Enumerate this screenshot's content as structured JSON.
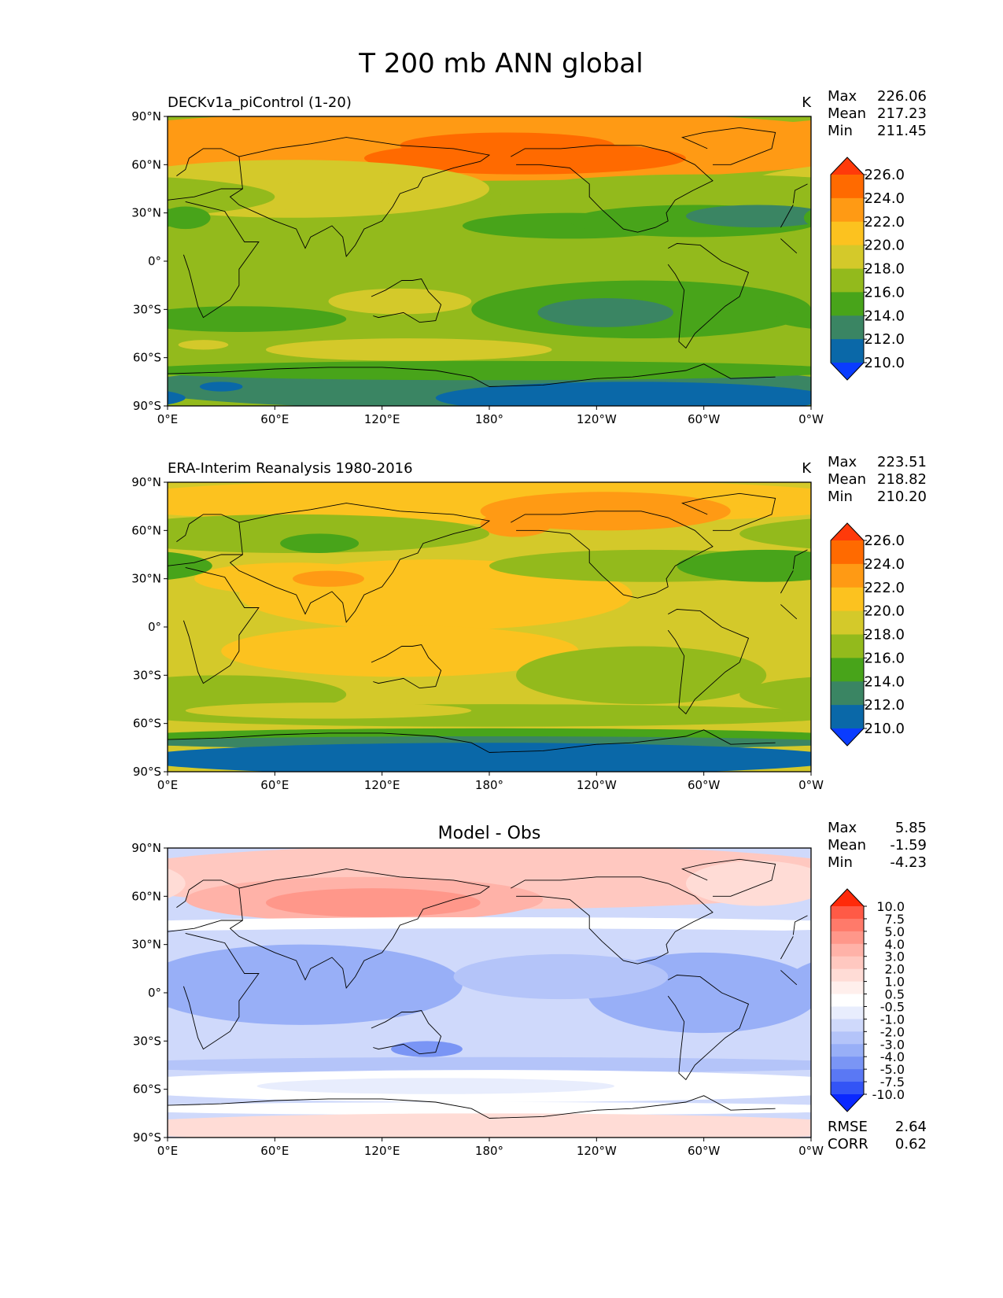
{
  "figure": {
    "title": "T 200 mb ANN global"
  },
  "axes": {
    "xticks": [
      "0°E",
      "60°E",
      "120°E",
      "180°",
      "120°W",
      "60°W",
      "0°W"
    ],
    "yticks": [
      "90°N",
      "60°N",
      "30°N",
      "0°",
      "30°S",
      "60°S",
      "90°S"
    ]
  },
  "chart_data": [
    {
      "type": "heatmap",
      "title": "DECKv1a_piControl (1-20)",
      "units": "K",
      "stats": {
        "max_label": "Max",
        "max": "226.06",
        "mean_label": "Mean",
        "mean": "217.23",
        "min_label": "Min",
        "min": "211.45"
      },
      "xlim": [
        0,
        360
      ],
      "ylim": [
        -90,
        90
      ],
      "colorbar": {
        "levels": [
          "226.0",
          "224.0",
          "222.0",
          "220.0",
          "218.0",
          "216.0",
          "214.0",
          "212.0",
          "210.0"
        ],
        "colors": [
          "#ff3a0a",
          "#ff6a00",
          "#ff9a14",
          "#fcc21f",
          "#d4c92a",
          "#93ba1c",
          "#48a41a",
          "#3a8563",
          "#0a68a8",
          "#0a3cff"
        ]
      },
      "background_level": 216.0,
      "regions": [
        {
          "lon": 170,
          "lat": 72,
          "rx": 240,
          "ry": 22,
          "value": 223
        },
        {
          "lon": 200,
          "lat": 64,
          "rx": 90,
          "ry": 10,
          "value": 225
        },
        {
          "lon": 190,
          "lat": 72,
          "rx": 60,
          "ry": 8,
          "value": 225
        },
        {
          "lon": 70,
          "lat": 45,
          "rx": 110,
          "ry": 18,
          "value": 219
        },
        {
          "lon": 95,
          "lat": 40,
          "rx": 50,
          "ry": 10,
          "value": 219
        },
        {
          "lon": 300,
          "lat": 40,
          "rx": 120,
          "ry": 14,
          "value": 217
        },
        {
          "lon": 225,
          "lat": 22,
          "rx": 60,
          "ry": 8,
          "value": 215
        },
        {
          "lon": 295,
          "lat": 25,
          "rx": 70,
          "ry": 10,
          "value": 215
        },
        {
          "lon": 330,
          "lat": 28,
          "rx": 40,
          "ry": 7,
          "value": 213
        },
        {
          "lon": 10,
          "lat": 27,
          "rx": 14,
          "ry": 7,
          "value": 215
        },
        {
          "lon": 130,
          "lat": -25,
          "rx": 40,
          "ry": 8,
          "value": 219
        },
        {
          "lon": 265,
          "lat": -30,
          "rx": 95,
          "ry": 18,
          "value": 215
        },
        {
          "lon": 245,
          "lat": -32,
          "rx": 38,
          "ry": 9,
          "value": 213
        },
        {
          "lon": 40,
          "lat": -36,
          "rx": 60,
          "ry": 8,
          "value": 215
        },
        {
          "lon": 135,
          "lat": -55,
          "rx": 80,
          "ry": 7,
          "value": 219
        },
        {
          "lon": 20,
          "lat": -52,
          "rx": 14,
          "ry": 3,
          "value": 219
        },
        {
          "lon": 180,
          "lat": -78,
          "rx": 200,
          "ry": 14,
          "value": 213
        },
        {
          "lon": 180,
          "lat": -68,
          "rx": 200,
          "ry": 6,
          "value": 215
        },
        {
          "lon": 260,
          "lat": -85,
          "rx": 110,
          "ry": 10,
          "value": 211
        },
        {
          "lon": 30,
          "lat": -78,
          "rx": 12,
          "ry": 3,
          "value": 211
        }
      ]
    },
    {
      "type": "heatmap",
      "title": "ERA-Interim Reanalysis 1980-2016",
      "units": "K",
      "stats": {
        "max_label": "Max",
        "max": "223.51",
        "mean_label": "Mean",
        "mean": "218.82",
        "min_label": "Min",
        "min": "210.20"
      },
      "xlim": [
        0,
        360
      ],
      "ylim": [
        -90,
        90
      ],
      "colorbar": {
        "levels": [
          "226.0",
          "224.0",
          "222.0",
          "220.0",
          "218.0",
          "216.0",
          "214.0",
          "212.0",
          "210.0"
        ],
        "colors": [
          "#ff3a0a",
          "#ff6a00",
          "#ff9a14",
          "#fcc21f",
          "#d4c92a",
          "#93ba1c",
          "#48a41a",
          "#3a8563",
          "#0a68a8",
          "#0a3cff"
        ]
      },
      "background_level": 218.0,
      "regions": [
        {
          "lon": 180,
          "lat": 78,
          "rx": 220,
          "ry": 14,
          "value": 221
        },
        {
          "lon": 245,
          "lat": 72,
          "rx": 70,
          "ry": 12,
          "value": 223
        },
        {
          "lon": 195,
          "lat": 64,
          "rx": 20,
          "ry": 8,
          "value": 223
        },
        {
          "lon": 70,
          "lat": 58,
          "rx": 110,
          "ry": 12,
          "value": 217
        },
        {
          "lon": 85,
          "lat": 52,
          "rx": 22,
          "ry": 6,
          "value": 215
        },
        {
          "lon": 150,
          "lat": 20,
          "rx": 110,
          "ry": 22,
          "value": 221
        },
        {
          "lon": 70,
          "lat": 30,
          "rx": 55,
          "ry": 10,
          "value": 221
        },
        {
          "lon": 90,
          "lat": 30,
          "rx": 20,
          "ry": 5,
          "value": 223
        },
        {
          "lon": 270,
          "lat": 38,
          "rx": 90,
          "ry": 10,
          "value": 217
        },
        {
          "lon": 335,
          "lat": 38,
          "rx": 50,
          "ry": 10,
          "value": 215
        },
        {
          "lon": 130,
          "lat": -15,
          "rx": 100,
          "ry": 16,
          "value": 221
        },
        {
          "lon": 265,
          "lat": -30,
          "rx": 70,
          "ry": 18,
          "value": 217
        },
        {
          "lon": 30,
          "lat": -42,
          "rx": 70,
          "ry": 12,
          "value": 217
        },
        {
          "lon": 180,
          "lat": -55,
          "rx": 200,
          "ry": 7,
          "value": 217
        },
        {
          "lon": 90,
          "lat": -52,
          "rx": 80,
          "ry": 5,
          "value": 219
        },
        {
          "lon": 180,
          "lat": -68,
          "rx": 200,
          "ry": 5,
          "value": 215
        },
        {
          "lon": 180,
          "lat": -72,
          "rx": 200,
          "ry": 4,
          "value": 213
        },
        {
          "lon": 180,
          "lat": -82,
          "rx": 200,
          "ry": 10,
          "value": 211
        }
      ]
    },
    {
      "type": "heatmap",
      "title": "Model - Obs",
      "units": "",
      "stats": {
        "max_label": "Max",
        "max": "5.85",
        "mean_label": "Mean",
        "mean": "-1.59",
        "min_label": "Min",
        "min": "-4.23"
      },
      "metrics": {
        "rmse_label": "RMSE",
        "rmse": "2.64",
        "corr_label": "CORR",
        "corr": "0.62"
      },
      "xlim": [
        0,
        360
      ],
      "ylim": [
        -90,
        90
      ],
      "colorbar": {
        "levels": [
          "10.0",
          "7.5",
          "5.0",
          "4.0",
          "3.0",
          "2.0",
          "1.0",
          "0.5",
          "-0.5",
          "-1.0",
          "-2.0",
          "-3.0",
          "-4.0",
          "-5.0",
          "-7.5",
          "-10.0"
        ],
        "colors": [
          "#ff2a0a",
          "#ff5a46",
          "#ff7a6a",
          "#ff978a",
          "#ffb2a8",
          "#ffc8c0",
          "#ffdcd6",
          "#ffefec",
          "#ffffff",
          "#e8edfd",
          "#cfd9fb",
          "#b4c4f9",
          "#98aff7",
          "#7a95f5",
          "#5a78f4",
          "#3354f6",
          "#0a28ff"
        ]
      },
      "background_level": -1.5,
      "regions": [
        {
          "lon": 180,
          "lat": 72,
          "rx": 220,
          "ry": 20,
          "value": 2.5
        },
        {
          "lon": 110,
          "lat": 58,
          "rx": 100,
          "ry": 14,
          "value": 3.5
        },
        {
          "lon": 115,
          "lat": 56,
          "rx": 60,
          "ry": 9,
          "value": 4.5
        },
        {
          "lon": 330,
          "lat": 68,
          "rx": 40,
          "ry": 14,
          "value": 1.5
        },
        {
          "lon": 180,
          "lat": 42,
          "rx": 220,
          "ry": 5,
          "value": 0
        },
        {
          "lon": 180,
          "lat": 36,
          "rx": 220,
          "ry": 4,
          "value": -1.5
        },
        {
          "lon": 75,
          "lat": 5,
          "rx": 90,
          "ry": 25,
          "value": -3.5
        },
        {
          "lon": 300,
          "lat": 0,
          "rx": 65,
          "ry": 25,
          "value": -3.5
        },
        {
          "lon": 220,
          "lat": 10,
          "rx": 60,
          "ry": 14,
          "value": -2.5
        },
        {
          "lon": 145,
          "lat": -35,
          "rx": 20,
          "ry": 5,
          "value": -4.5
        },
        {
          "lon": 180,
          "lat": -45,
          "rx": 220,
          "ry": 5,
          "value": -2.5
        },
        {
          "lon": 180,
          "lat": -58,
          "rx": 220,
          "ry": 10,
          "value": 0
        },
        {
          "lon": 150,
          "lat": -58,
          "rx": 100,
          "ry": 5,
          "value": -0.8
        },
        {
          "lon": 180,
          "lat": -72,
          "rx": 220,
          "ry": 4,
          "value": 0
        },
        {
          "lon": 180,
          "lat": -84,
          "rx": 220,
          "ry": 9,
          "value": 1.5
        }
      ]
    }
  ]
}
